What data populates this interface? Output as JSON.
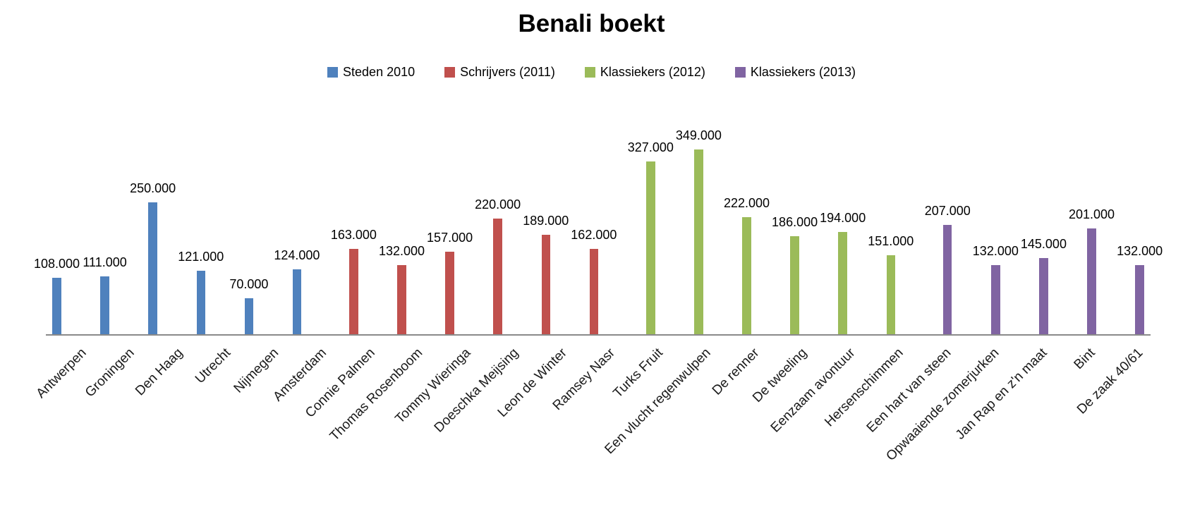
{
  "title": "Benali boekt",
  "legend": {
    "items": [
      {
        "label": "Steden 2010",
        "color": "#4F81BD"
      },
      {
        "label": "Schrijvers (2011)",
        "color": "#C0504D"
      },
      {
        "label": "Klassiekers (2012)",
        "color": "#9BBB59"
      },
      {
        "label": "Klassiekers (2013)",
        "color": "#8064A2"
      }
    ]
  },
  "chart_data": {
    "type": "bar",
    "title": "Benali boekt",
    "xlabel": "",
    "ylabel": "",
    "ylim": [
      0,
      370000
    ],
    "y_axis_visible": false,
    "gridlines": false,
    "legend_position": "top",
    "value_label_format": "thousands with dot separator",
    "categories": [
      "Antwerpen",
      "Groningen",
      "Den Haag",
      "Utrecht",
      "Nijmegen",
      "Amsterdam",
      "Connie Palmen",
      "Thomas Rosenboom",
      "Tommy Wieringa",
      "Doeschka Meijsing",
      "Leon de Winter",
      "Ramsey Nasr",
      "Turks Fruit",
      "Een vlucht regenwulpen",
      "De renner",
      "De tweeling",
      "Eenzaam avontuur",
      "Hersenschimmen",
      "Een hart van steen",
      "Opwaaiende zomerjurken",
      "Jan Rap en z'n maat",
      "Bint",
      "De zaak 40/61"
    ],
    "series": [
      {
        "name": "Steden 2010",
        "color": "#4F81BD",
        "points": [
          {
            "category": "Antwerpen",
            "value": 108000,
            "label": "108.000"
          },
          {
            "category": "Groningen",
            "value": 111000,
            "label": "111.000"
          },
          {
            "category": "Den Haag",
            "value": 250000,
            "label": "250.000"
          },
          {
            "category": "Utrecht",
            "value": 121000,
            "label": "121.000"
          },
          {
            "category": "Nijmegen",
            "value": 70000,
            "label": "70.000"
          },
          {
            "category": "Amsterdam",
            "value": 124000,
            "label": "124.000"
          }
        ]
      },
      {
        "name": "Schrijvers (2011)",
        "color": "#C0504D",
        "points": [
          {
            "category": "Connie Palmen",
            "value": 163000,
            "label": "163.000"
          },
          {
            "category": "Thomas Rosenboom",
            "value": 132000,
            "label": "132.000"
          },
          {
            "category": "Tommy Wieringa",
            "value": 157000,
            "label": "157.000"
          },
          {
            "category": "Doeschka Meijsing",
            "value": 220000,
            "label": "220.000"
          },
          {
            "category": "Leon de Winter",
            "value": 189000,
            "label": "189.000"
          },
          {
            "category": "Ramsey Nasr",
            "value": 162000,
            "label": "162.000"
          }
        ]
      },
      {
        "name": "Klassiekers (2012)",
        "color": "#9BBB59",
        "points": [
          {
            "category": "Turks Fruit",
            "value": 327000,
            "label": "327.000"
          },
          {
            "category": "Een vlucht regenwulpen",
            "value": 349000,
            "label": "349.000"
          },
          {
            "category": "De renner",
            "value": 222000,
            "label": "222.000"
          },
          {
            "category": "De tweeling",
            "value": 186000,
            "label": "186.000"
          },
          {
            "category": "Eenzaam avontuur",
            "value": 194000,
            "label": "194.000"
          },
          {
            "category": "Hersenschimmen",
            "value": 151000,
            "label": "151.000"
          }
        ]
      },
      {
        "name": "Klassiekers (2013)",
        "color": "#8064A2",
        "points": [
          {
            "category": "Een hart van steen",
            "value": 207000,
            "label": "207.000"
          },
          {
            "category": "Opwaaiende zomerjurken",
            "value": 132000,
            "label": "132.000"
          },
          {
            "category": "Jan Rap en z'n maat",
            "value": 145000,
            "label": "145.000"
          },
          {
            "category": "Bint",
            "value": 201000,
            "label": "201.000"
          },
          {
            "category": "De zaak 40/61",
            "value": 132000,
            "label": "132.000"
          }
        ]
      }
    ]
  }
}
